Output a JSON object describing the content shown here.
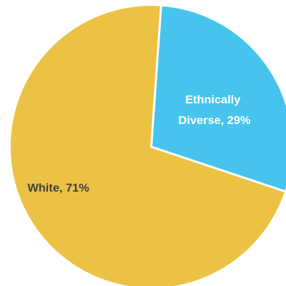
{
  "chart_data": {
    "type": "pie",
    "slices": [
      {
        "label_line1": "White, 71%",
        "label_line2": "",
        "name": "White",
        "value": 71,
        "color": "#ECC245",
        "label_color": "#3f3f3f"
      },
      {
        "label_line1": "Ethnically",
        "label_line2": "Diverse, 29%",
        "name": "Ethnically Diverse",
        "value": 29,
        "color": "#47C4EE",
        "label_color": "#ffffff"
      }
    ],
    "start_angle_deg": 4,
    "slice_order": [
      1,
      0
    ],
    "separator_color": "#ffffff"
  }
}
